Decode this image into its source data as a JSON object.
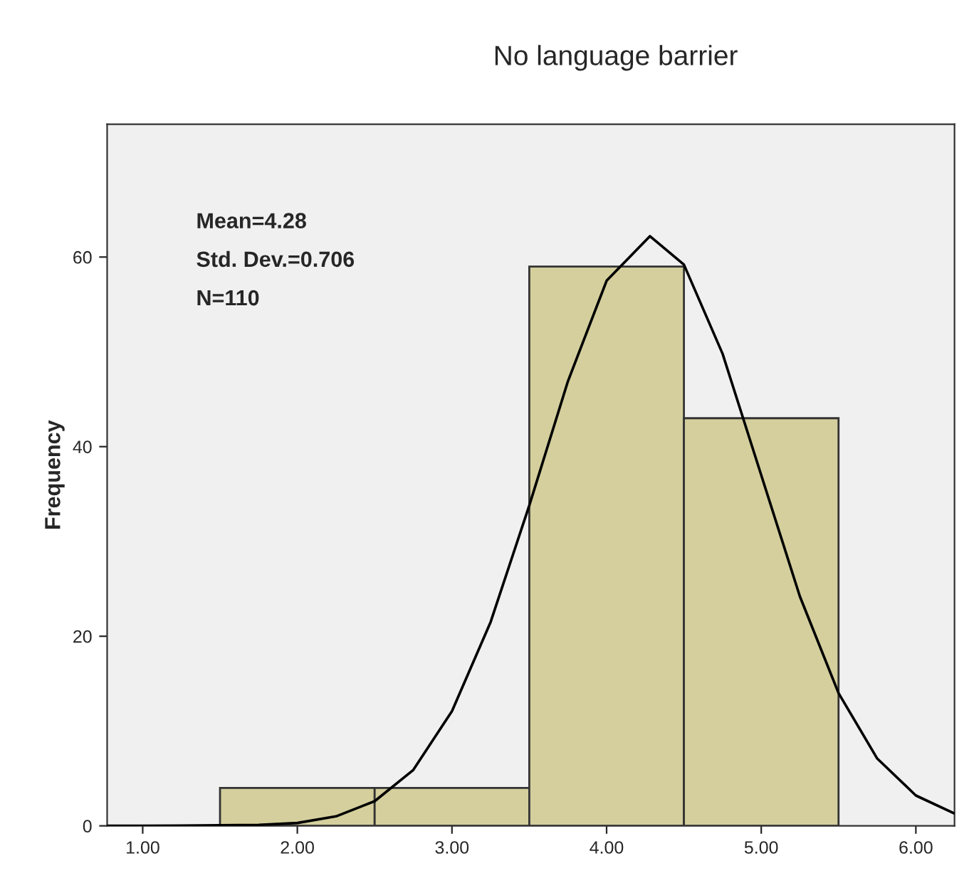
{
  "chart_data": {
    "type": "histogram",
    "title": "No language barrier",
    "ylabel": "Frequency",
    "bins": [
      1.5,
      2.5,
      3.5,
      4.5,
      5.5
    ],
    "series": [
      {
        "color": "#d4cf9d",
        "values": [
          4,
          4,
          59,
          43
        ]
      },
      {
        "type": "line",
        "color": "#000000",
        "x": [
          0.77,
          1.0,
          1.75,
          2.0,
          2.25,
          2.5,
          2.75,
          3.0,
          3.25,
          3.5,
          3.75,
          4.0,
          4.28,
          4.5,
          4.75,
          5.0,
          5.25,
          5.5,
          5.75,
          6.0,
          6.25
        ],
        "values": [
          0,
          0,
          0.1,
          0.3,
          1.0,
          2.6,
          5.9,
          12.1,
          21.5,
          33.8,
          46.9,
          57.5,
          62.2,
          59.2,
          49.8,
          37.0,
          24.2,
          14.0,
          7.1,
          3.2,
          1.3
        ]
      }
    ],
    "annotations": [
      "Mean=4.28",
      "Std. Dev.=0.706",
      "N=110"
    ],
    "xlim": [
      0.77,
      6.25
    ],
    "ylim": [
      0,
      74
    ],
    "xticks": [
      {
        "value": 1,
        "label": "1.00"
      },
      {
        "value": 2,
        "label": "2.00"
      },
      {
        "value": 3,
        "label": "3.00"
      },
      {
        "value": 4,
        "label": "4.00"
      },
      {
        "value": 5,
        "label": "5.00"
      },
      {
        "value": 6,
        "label": "6.00"
      }
    ],
    "yticks": [
      0,
      20,
      40,
      60
    ],
    "grid": false
  }
}
